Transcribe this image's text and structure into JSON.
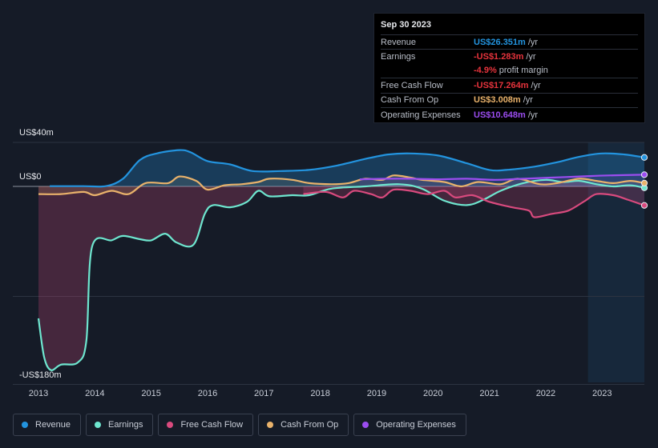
{
  "chart_data": {
    "type": "area",
    "title": "",
    "x_range": [
      2013.0,
      2023.75
    ],
    "y_range_millions": [
      -180,
      40
    ],
    "y_tick_labels": [
      {
        "value": 40,
        "label": "US$40m"
      },
      {
        "value": 0,
        "label": "US$0"
      },
      {
        "value": -180,
        "label": "-US$180m"
      }
    ],
    "gridlines_millions": [
      40,
      0,
      -100,
      -180
    ],
    "x_tick_labels": [
      "2013",
      "2014",
      "2015",
      "2016",
      "2017",
      "2018",
      "2019",
      "2020",
      "2021",
      "2022",
      "2023"
    ],
    "forecast_shade_from": 2022.75,
    "series": [
      {
        "name": "Revenue",
        "key": "revenue",
        "color": "#2394df",
        "fill": true,
        "points": [
          [
            2013.2,
            0.2
          ],
          [
            2013.8,
            0.2
          ],
          [
            2014.2,
            0.3
          ],
          [
            2014.5,
            7
          ],
          [
            2014.8,
            24
          ],
          [
            2015.1,
            30
          ],
          [
            2015.5,
            33
          ],
          [
            2015.7,
            31
          ],
          [
            2016.0,
            23
          ],
          [
            2016.4,
            20
          ],
          [
            2016.8,
            14
          ],
          [
            2017.3,
            14
          ],
          [
            2017.8,
            15
          ],
          [
            2018.3,
            19
          ],
          [
            2018.8,
            25
          ],
          [
            2019.2,
            29
          ],
          [
            2019.6,
            30
          ],
          [
            2020.1,
            28
          ],
          [
            2020.6,
            21
          ],
          [
            2021.0,
            15
          ],
          [
            2021.3,
            15
          ],
          [
            2021.8,
            18
          ],
          [
            2022.2,
            22
          ],
          [
            2022.6,
            27
          ],
          [
            2023.0,
            30
          ],
          [
            2023.4,
            29
          ],
          [
            2023.75,
            26.351
          ]
        ]
      },
      {
        "name": "Earnings",
        "key": "earnings",
        "color": "#6ee6cf",
        "fill": false,
        "points": [
          [
            2013.0,
            -120
          ],
          [
            2013.1,
            -155
          ],
          [
            2013.22,
            -167
          ],
          [
            2013.4,
            -162
          ],
          [
            2013.7,
            -160
          ],
          [
            2013.85,
            -140
          ],
          [
            2013.95,
            -55
          ],
          [
            2014.3,
            -49
          ],
          [
            2014.5,
            -45
          ],
          [
            2014.8,
            -48
          ],
          [
            2015.0,
            -49
          ],
          [
            2015.25,
            -43
          ],
          [
            2015.45,
            -51
          ],
          [
            2015.75,
            -53
          ],
          [
            2015.95,
            -25
          ],
          [
            2016.1,
            -17
          ],
          [
            2016.4,
            -19
          ],
          [
            2016.7,
            -14
          ],
          [
            2016.9,
            -4
          ],
          [
            2017.1,
            -9
          ],
          [
            2017.5,
            -8
          ],
          [
            2017.8,
            -8
          ],
          [
            2018.2,
            -2
          ],
          [
            2018.8,
            0
          ],
          [
            2019.4,
            2
          ],
          [
            2019.8,
            -2
          ],
          [
            2020.2,
            -13
          ],
          [
            2020.6,
            -17
          ],
          [
            2020.9,
            -12
          ],
          [
            2021.2,
            -4
          ],
          [
            2021.6,
            3
          ],
          [
            2022.0,
            6
          ],
          [
            2022.3,
            4
          ],
          [
            2022.6,
            5
          ],
          [
            2022.9,
            2
          ],
          [
            2023.2,
            0
          ],
          [
            2023.5,
            1
          ],
          [
            2023.75,
            -1.283
          ]
        ]
      },
      {
        "name": "Free Cash Flow",
        "key": "fcf",
        "color": "#d94a7e",
        "fill": true,
        "points": [
          [
            2017.7,
            -7
          ],
          [
            2018.1,
            -5
          ],
          [
            2018.4,
            -10
          ],
          [
            2018.6,
            -4
          ],
          [
            2018.9,
            -7
          ],
          [
            2019.1,
            -10
          ],
          [
            2019.3,
            -3
          ],
          [
            2019.6,
            -4
          ],
          [
            2019.9,
            -7
          ],
          [
            2020.2,
            -4
          ],
          [
            2020.4,
            -10
          ],
          [
            2020.7,
            -8
          ],
          [
            2021.0,
            -14
          ],
          [
            2021.4,
            -19
          ],
          [
            2021.7,
            -22
          ],
          [
            2021.8,
            -28
          ],
          [
            2022.1,
            -25
          ],
          [
            2022.4,
            -22
          ],
          [
            2022.7,
            -13
          ],
          [
            2022.9,
            -7
          ],
          [
            2023.2,
            -8
          ],
          [
            2023.45,
            -12
          ],
          [
            2023.75,
            -17.264
          ]
        ]
      },
      {
        "name": "Cash From Op",
        "key": "cfo",
        "color": "#e9b26b",
        "fill": true,
        "points": [
          [
            2013.0,
            -7
          ],
          [
            2013.4,
            -7
          ],
          [
            2013.8,
            -5
          ],
          [
            2014.0,
            -8
          ],
          [
            2014.3,
            -4
          ],
          [
            2014.6,
            -7
          ],
          [
            2014.9,
            3
          ],
          [
            2015.3,
            3
          ],
          [
            2015.5,
            9
          ],
          [
            2015.8,
            5
          ],
          [
            2016.0,
            -3
          ],
          [
            2016.3,
            1
          ],
          [
            2016.6,
            2
          ],
          [
            2016.9,
            4
          ],
          [
            2017.1,
            7
          ],
          [
            2017.5,
            6
          ],
          [
            2017.8,
            3
          ],
          [
            2018.2,
            2
          ],
          [
            2018.5,
            3
          ],
          [
            2018.8,
            7
          ],
          [
            2019.1,
            6
          ],
          [
            2019.3,
            10
          ],
          [
            2019.6,
            8
          ],
          [
            2019.8,
            6
          ],
          [
            2020.2,
            4
          ],
          [
            2020.5,
            0
          ],
          [
            2020.8,
            4
          ],
          [
            2021.2,
            2
          ],
          [
            2021.5,
            7
          ],
          [
            2021.9,
            2
          ],
          [
            2022.2,
            3
          ],
          [
            2022.6,
            7
          ],
          [
            2022.9,
            5
          ],
          [
            2023.2,
            3
          ],
          [
            2023.5,
            5
          ],
          [
            2023.75,
            3.008
          ]
        ]
      },
      {
        "name": "Operating Expenses",
        "key": "opex",
        "color": "#9b4df0",
        "fill": true,
        "points": [
          [
            2018.7,
            6.5
          ],
          [
            2019.2,
            7
          ],
          [
            2019.6,
            7
          ],
          [
            2020.1,
            6.5
          ],
          [
            2020.6,
            7
          ],
          [
            2021.1,
            6
          ],
          [
            2021.6,
            7
          ],
          [
            2022.1,
            8
          ],
          [
            2022.6,
            9
          ],
          [
            2023.1,
            10
          ],
          [
            2023.75,
            10.648
          ]
        ]
      }
    ]
  },
  "tooltip": {
    "date": "Sep 30 2023",
    "rows": [
      {
        "label": "Revenue",
        "value": "US$26.351m",
        "unit": "/yr",
        "color": "#2394df"
      },
      {
        "label": "Earnings",
        "value": "-US$1.283m",
        "unit": "/yr",
        "color": "#e6333c"
      },
      {
        "label": "",
        "value": "-4.9%",
        "unit": "profit margin",
        "color": "#e6333c"
      },
      {
        "label": "Free Cash Flow",
        "value": "-US$17.264m",
        "unit": "/yr",
        "color": "#e6333c"
      },
      {
        "label": "Cash From Op",
        "value": "US$3.008m",
        "unit": "/yr",
        "color": "#e9b26b"
      },
      {
        "label": "Operating Expenses",
        "value": "US$10.648m",
        "unit": "/yr",
        "color": "#9b4df0"
      }
    ]
  },
  "legend": [
    {
      "label": "Revenue",
      "color": "#2394df"
    },
    {
      "label": "Earnings",
      "color": "#6ee6cf"
    },
    {
      "label": "Free Cash Flow",
      "color": "#d94a7e"
    },
    {
      "label": "Cash From Op",
      "color": "#e9b26b"
    },
    {
      "label": "Operating Expenses",
      "color": "#9b4df0"
    }
  ]
}
